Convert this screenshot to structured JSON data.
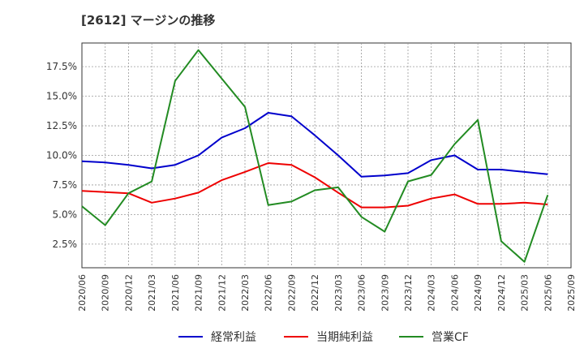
{
  "title": "[2612]  マージンの推移",
  "chart_data": {
    "type": "line",
    "x": [
      "2020/06",
      "2020/09",
      "2020/12",
      "2021/03",
      "2021/06",
      "2021/09",
      "2021/12",
      "2022/03",
      "2022/06",
      "2022/09",
      "2022/12",
      "2023/03",
      "2023/06",
      "2023/09",
      "2023/12",
      "2024/03",
      "2024/06",
      "2024/09",
      "2024/12",
      "2025/03",
      "2025/06",
      "2025/09"
    ],
    "y_ticks": [
      "2.5%",
      "5.0%",
      "7.5%",
      "10.0%",
      "12.5%",
      "15.0%",
      "17.5%"
    ],
    "ylim": [
      0.5,
      19.5
    ],
    "grid": true,
    "legend_position": "bottom",
    "series": [
      {
        "name": "経常利益",
        "color": "#0000cc",
        "values": [
          9.5,
          9.4,
          9.2,
          8.9,
          9.2,
          10.0,
          11.5,
          12.3,
          13.6,
          13.3,
          11.7,
          10.0,
          8.2,
          8.3,
          8.5,
          9.6,
          10.0,
          8.8,
          8.8,
          8.6,
          8.4,
          null
        ]
      },
      {
        "name": "当期純利益",
        "color": "#ee0000",
        "values": [
          7.0,
          6.9,
          6.8,
          6.0,
          6.35,
          6.85,
          7.9,
          8.6,
          9.35,
          9.2,
          8.15,
          6.85,
          5.6,
          5.6,
          5.75,
          6.35,
          6.7,
          5.9,
          5.9,
          6.0,
          5.85,
          null
        ]
      },
      {
        "name": "営業CF",
        "color": "#228b22",
        "values": [
          5.7,
          4.1,
          6.8,
          7.8,
          16.3,
          18.9,
          16.5,
          14.1,
          5.8,
          6.1,
          7.05,
          7.3,
          4.8,
          3.55,
          7.8,
          8.35,
          10.95,
          13.0,
          2.75,
          1.0,
          6.65,
          null
        ]
      }
    ]
  }
}
